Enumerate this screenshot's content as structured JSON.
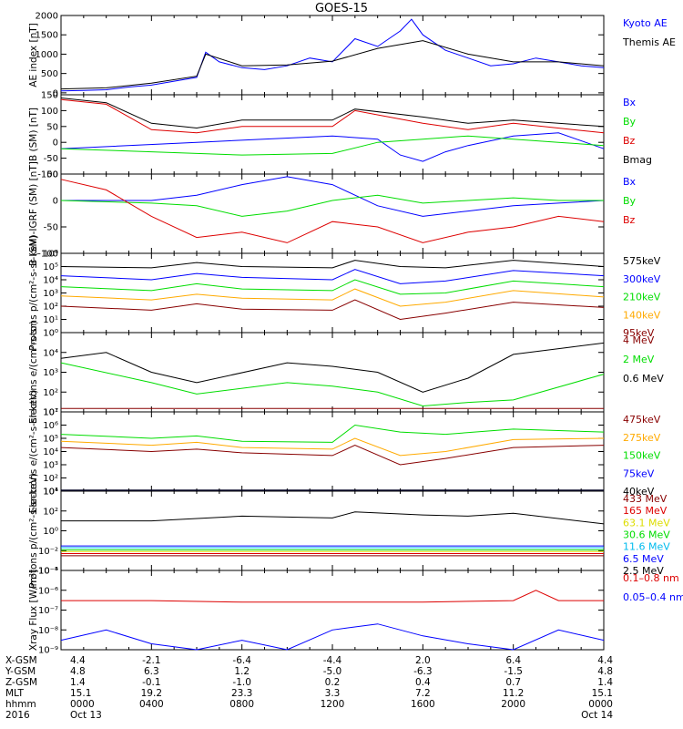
{
  "title": "GOES-15",
  "colors": {
    "black": "#000000",
    "blue": "#0000ff",
    "green": "#00dd00",
    "red": "#dd0000",
    "darkred": "#880000",
    "orange": "#ffaa00",
    "cyan": "#00bbee",
    "yellow": "#dddd00"
  },
  "chart_data": [
    {
      "type": "line",
      "ylabel": "AE index [nT]",
      "ylim": [
        -50,
        2000
      ],
      "yscale": "linear",
      "yticks": [
        "2000",
        "1500",
        "1000",
        "500",
        "0"
      ],
      "series": [
        {
          "name": "Kyoto AE",
          "color": "#0000ff",
          "x": [
            0,
            1,
            2,
            3,
            4,
            5,
            6,
            6.4,
            7,
            8,
            9,
            10,
            11,
            12,
            13,
            14,
            15,
            15.5,
            16,
            17,
            18,
            19,
            20,
            21,
            22,
            23,
            24
          ],
          "y": [
            50,
            60,
            80,
            150,
            200,
            300,
            400,
            1050,
            800,
            650,
            600,
            700,
            900,
            800,
            1400,
            1200,
            1600,
            1900,
            1500,
            1100,
            900,
            700,
            750,
            900,
            800,
            700,
            650
          ]
        },
        {
          "name": "Themis AE",
          "color": "#000000",
          "x": [
            0,
            2,
            4,
            6,
            6.4,
            8,
            10,
            12,
            14,
            16,
            18,
            20,
            22,
            24
          ],
          "y": [
            100,
            130,
            250,
            430,
            1000,
            700,
            720,
            820,
            1150,
            1350,
            1000,
            800,
            800,
            700
          ]
        }
      ]
    },
    {
      "type": "line",
      "ylabel": "B (SM) [nT]",
      "ylim": [
        -100,
        150
      ],
      "yscale": "linear",
      "yticks": [
        "150",
        "100",
        "50",
        "0",
        "-50",
        "-100"
      ],
      "series": [
        {
          "name": "Bx",
          "color": "#0000ff",
          "x": [
            0,
            6,
            12,
            14,
            15,
            16,
            17,
            18,
            20,
            22,
            24
          ],
          "y": [
            -20,
            0,
            20,
            10,
            -40,
            -60,
            -30,
            -10,
            20,
            30,
            -20
          ]
        },
        {
          "name": "By",
          "color": "#00dd00",
          "x": [
            0,
            4,
            8,
            12,
            14,
            16,
            18,
            20,
            22,
            24
          ],
          "y": [
            -20,
            -30,
            -40,
            -35,
            0,
            10,
            20,
            10,
            0,
            -10
          ]
        },
        {
          "name": "Bz",
          "color": "#dd0000",
          "x": [
            0,
            2,
            4,
            6,
            8,
            12,
            13,
            16,
            18,
            20,
            24
          ],
          "y": [
            135,
            120,
            40,
            30,
            50,
            50,
            100,
            60,
            40,
            60,
            30
          ]
        },
        {
          "name": "Bmag",
          "color": "#000000",
          "x": [
            0,
            2,
            4,
            6,
            8,
            12,
            13,
            16,
            18,
            20,
            24
          ],
          "y": [
            140,
            125,
            60,
            45,
            70,
            70,
            105,
            80,
            60,
            70,
            50
          ]
        }
      ]
    },
    {
      "type": "line",
      "ylabel": "B (SM)-IGRF (SM) [nT]",
      "ylim": [
        -100,
        50
      ],
      "yscale": "linear",
      "yticks": [
        "50",
        "0",
        "-50",
        "-100"
      ],
      "series": [
        {
          "name": "Bx",
          "color": "#0000ff",
          "x": [
            0,
            4,
            6,
            8,
            10,
            12,
            14,
            16,
            18,
            20,
            22,
            24
          ],
          "y": [
            0,
            0,
            10,
            30,
            45,
            30,
            -10,
            -30,
            -20,
            -10,
            -5,
            0
          ]
        },
        {
          "name": "By",
          "color": "#00dd00",
          "x": [
            0,
            4,
            6,
            8,
            10,
            12,
            14,
            16,
            18,
            20,
            22,
            24
          ],
          "y": [
            0,
            -5,
            -10,
            -30,
            -20,
            0,
            10,
            -5,
            0,
            5,
            0,
            0
          ]
        },
        {
          "name": "Bz",
          "color": "#dd0000",
          "x": [
            0,
            2,
            4,
            6,
            8,
            10,
            12,
            14,
            16,
            18,
            20,
            22,
            24
          ],
          "y": [
            40,
            20,
            -30,
            -70,
            -60,
            -80,
            -40,
            -50,
            -80,
            -60,
            -50,
            -30,
            -40
          ]
        }
      ]
    },
    {
      "type": "line",
      "ylabel": "Protons p/(cm²-s-sr-keV)",
      "ylim": [
        1,
        1000000
      ],
      "yscale": "log",
      "yticks": [
        "10^6",
        "10^5",
        "10^4",
        "10^3",
        "10^2",
        "10^1",
        "10^0"
      ],
      "series": [
        {
          "name": "575keV",
          "color": "#000000",
          "x": [
            0,
            4,
            6,
            8,
            12,
            13,
            15,
            17,
            20,
            24
          ],
          "y": [
            100000,
            80000,
            200000,
            100000,
            80000,
            300000,
            100000,
            80000,
            300000,
            100000
          ]
        },
        {
          "name": "300keV",
          "color": "#0000ff",
          "x": [
            0,
            4,
            6,
            8,
            12,
            13,
            15,
            17,
            20,
            24
          ],
          "y": [
            20000,
            10000,
            30000,
            15000,
            10000,
            60000,
            5000,
            8000,
            50000,
            20000
          ]
        },
        {
          "name": "210keV",
          "color": "#00dd00",
          "x": [
            0,
            4,
            6,
            8,
            12,
            13,
            15,
            17,
            20,
            24
          ],
          "y": [
            3000,
            1500,
            5000,
            2000,
            1500,
            10000,
            800,
            1000,
            8000,
            3000
          ]
        },
        {
          "name": "140keV",
          "color": "#ffaa00",
          "x": [
            0,
            4,
            6,
            8,
            12,
            13,
            15,
            17,
            20,
            24
          ],
          "y": [
            600,
            300,
            800,
            400,
            300,
            2000,
            100,
            200,
            1500,
            500
          ]
        },
        {
          "name": "95keV",
          "color": "#880000",
          "x": [
            0,
            4,
            6,
            8,
            12,
            13,
            15,
            17,
            20,
            24
          ],
          "y": [
            100,
            50,
            150,
            60,
            50,
            300,
            10,
            30,
            200,
            80
          ]
        }
      ]
    },
    {
      "type": "line",
      "ylabel": "Electrons e/(cm²-s-sr)",
      "ylim": [
        10,
        100000
      ],
      "yscale": "log",
      "yticks": [
        "10^4",
        "10^3",
        "10^2",
        "10^1"
      ],
      "series": [
        {
          "name": "4 MeV",
          "color": "#880000",
          "x": [
            0,
            24
          ],
          "y": [
            15,
            15
          ]
        },
        {
          "name": "2 MeV",
          "color": "#00dd00",
          "x": [
            0,
            4,
            6,
            10,
            12,
            14,
            16,
            18,
            20,
            24
          ],
          "y": [
            3000,
            300,
            80,
            300,
            200,
            100,
            20,
            30,
            40,
            800
          ]
        },
        {
          "name": "0.6 MeV",
          "color": "#000000",
          "x": [
            0,
            2,
            4,
            6,
            10,
            12,
            14,
            16,
            18,
            20,
            24
          ],
          "y": [
            5000,
            10000,
            1000,
            300,
            3000,
            2000,
            1000,
            100,
            500,
            8000,
            30000
          ]
        }
      ]
    },
    {
      "type": "line",
      "ylabel": "Electrons e/(cm²-s-sr-keV)",
      "ylim": [
        10,
        10000000
      ],
      "yscale": "log",
      "yticks": [
        "10^7",
        "10^6",
        "10^5",
        "10^4",
        "10^3",
        "10^2",
        "10^1"
      ],
      "series": [
        {
          "name": "475keV",
          "color": "#880000",
          "x": [
            0,
            4,
            6,
            8,
            12,
            13,
            15,
            17,
            20,
            24
          ],
          "y": [
            20000,
            10000,
            15000,
            8000,
            5000,
            30000,
            1000,
            3000,
            20000,
            30000
          ]
        },
        {
          "name": "275keV",
          "color": "#ffaa00",
          "x": [
            0,
            4,
            6,
            8,
            12,
            13,
            15,
            17,
            20,
            24
          ],
          "y": [
            60000,
            30000,
            50000,
            20000,
            15000,
            100000,
            5000,
            10000,
            80000,
            100000
          ]
        },
        {
          "name": "150keV",
          "color": "#00dd00",
          "x": [
            0,
            4,
            6,
            8,
            12,
            13,
            15,
            17,
            20,
            24
          ],
          "y": [
            200000,
            100000,
            150000,
            60000,
            50000,
            1000000,
            300000,
            200000,
            500000,
            300000
          ]
        },
        {
          "name": "75keV",
          "color": "#0000ff",
          "x": [
            0,
            24
          ],
          "y": [
            12,
            12
          ]
        },
        {
          "name": "40keV",
          "color": "#000000",
          "x": [
            0,
            24
          ],
          "y": [
            12,
            12
          ]
        }
      ]
    },
    {
      "type": "line",
      "ylabel": "Protons p/(cm²-s-sr-keV)",
      "ylim": [
        0.0001,
        10000
      ],
      "yscale": "log",
      "yticks": [
        "10^4",
        "10^2",
        "10^0",
        "10^-2",
        "10^-4"
      ],
      "series": [
        {
          "name": "433 MeV",
          "color": "#880000",
          "x": [
            0,
            24
          ],
          "y": [
            0.003,
            0.003
          ]
        },
        {
          "name": "165 MeV",
          "color": "#dd0000",
          "x": [
            0,
            24
          ],
          "y": [
            0.005,
            0.005
          ]
        },
        {
          "name": "63.1 MeV",
          "color": "#dddd00",
          "x": [
            0,
            24
          ],
          "y": [
            0.008,
            0.008
          ]
        },
        {
          "name": "30.6 MeV",
          "color": "#00dd00",
          "x": [
            0,
            24
          ],
          "y": [
            0.012,
            0.012
          ]
        },
        {
          "name": "11.6 MeV",
          "color": "#00bbee",
          "x": [
            0,
            24
          ],
          "y": [
            0.02,
            0.02
          ]
        },
        {
          "name": "6.5 MeV",
          "color": "#0000ff",
          "x": [
            0,
            24
          ],
          "y": [
            0.03,
            0.03
          ]
        },
        {
          "name": "2.5 MeV",
          "color": "#000000",
          "x": [
            0,
            4,
            8,
            12,
            13,
            16,
            18,
            20,
            24
          ],
          "y": [
            10,
            10,
            30,
            20,
            80,
            40,
            30,
            60,
            5
          ]
        }
      ]
    },
    {
      "type": "line",
      "ylabel": "Xray Flux [W/m²]",
      "ylim": [
        1e-09,
        1e-05
      ],
      "yscale": "log",
      "yticks": [
        "10^-5",
        "10^-6",
        "10^-7",
        "10^-8",
        "10^-9"
      ],
      "series": [
        {
          "name": "0.1–0.8 nm",
          "color": "#dd0000",
          "x": [
            0,
            4,
            8,
            12,
            16,
            20,
            21,
            22,
            24
          ],
          "y": [
            3e-07,
            3e-07,
            2.5e-07,
            2.5e-07,
            2.5e-07,
            3e-07,
            1e-06,
            3e-07,
            3e-07
          ]
        },
        {
          "name": "0.05–0.4 nm",
          "color": "#0000ff",
          "x": [
            0,
            2,
            4,
            6,
            8,
            10,
            12,
            14,
            16,
            18,
            20,
            22,
            24
          ],
          "y": [
            3e-09,
            1e-08,
            2e-09,
            1e-09,
            3e-09,
            1e-09,
            1e-08,
            2e-08,
            5e-09,
            2e-09,
            1e-09,
            1e-08,
            3e-09
          ]
        }
      ]
    }
  ],
  "ephemeris": {
    "rows": [
      {
        "label": "X-GSM",
        "values": [
          "4.4",
          "-2.1",
          "-6.4",
          "-4.4",
          "2.0",
          "6.4",
          "4.4"
        ]
      },
      {
        "label": "Y-GSM",
        "values": [
          "4.8",
          "6.3",
          "1.2",
          "-5.0",
          "-6.3",
          "-1.5",
          "4.8"
        ]
      },
      {
        "label": "Z-GSM",
        "values": [
          "1.4",
          "-0.1",
          "-1.0",
          "0.2",
          "0.4",
          "0.7",
          "1.4"
        ]
      },
      {
        "label": "MLT",
        "values": [
          "15.1",
          "19.2",
          "23.3",
          "3.3",
          "7.2",
          "11.2",
          "15.1"
        ]
      },
      {
        "label": "hhmm",
        "values": [
          "0000",
          "0400",
          "0800",
          "1200",
          "1600",
          "2000",
          "0000"
        ]
      },
      {
        "label": "2016",
        "values": [
          "Oct 13",
          "",
          "",
          "",
          "",
          "",
          "Oct 14"
        ]
      }
    ]
  }
}
